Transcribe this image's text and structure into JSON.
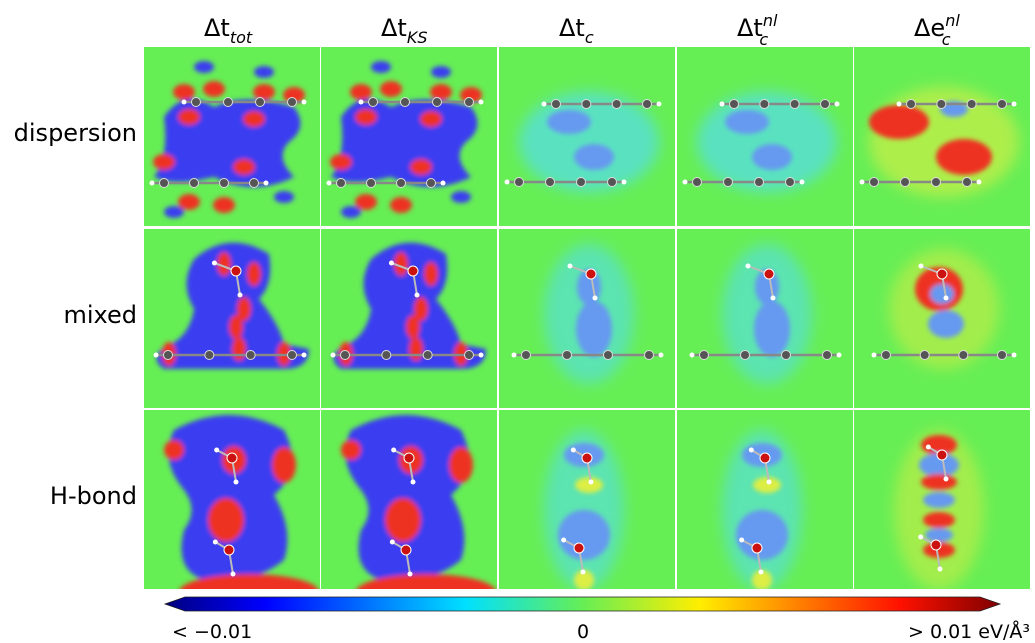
{
  "column_headers": [
    {
      "base": "Δt",
      "sub": "tot"
    },
    {
      "base": "Δt",
      "sub": "KS"
    },
    {
      "base": "Δt",
      "sub": "c"
    },
    {
      "base": "Δt",
      "sub": "c",
      "sup": "nl"
    },
    {
      "base": "Δe",
      "sub": "c",
      "sup": "nl"
    }
  ],
  "row_labels": [
    "dispersion",
    "mixed",
    "H-bond"
  ],
  "colorbar": {
    "min_label": "< −0.01",
    "mid_label": "0",
    "max_label": "> 0.01 eV/Å³"
  }
}
